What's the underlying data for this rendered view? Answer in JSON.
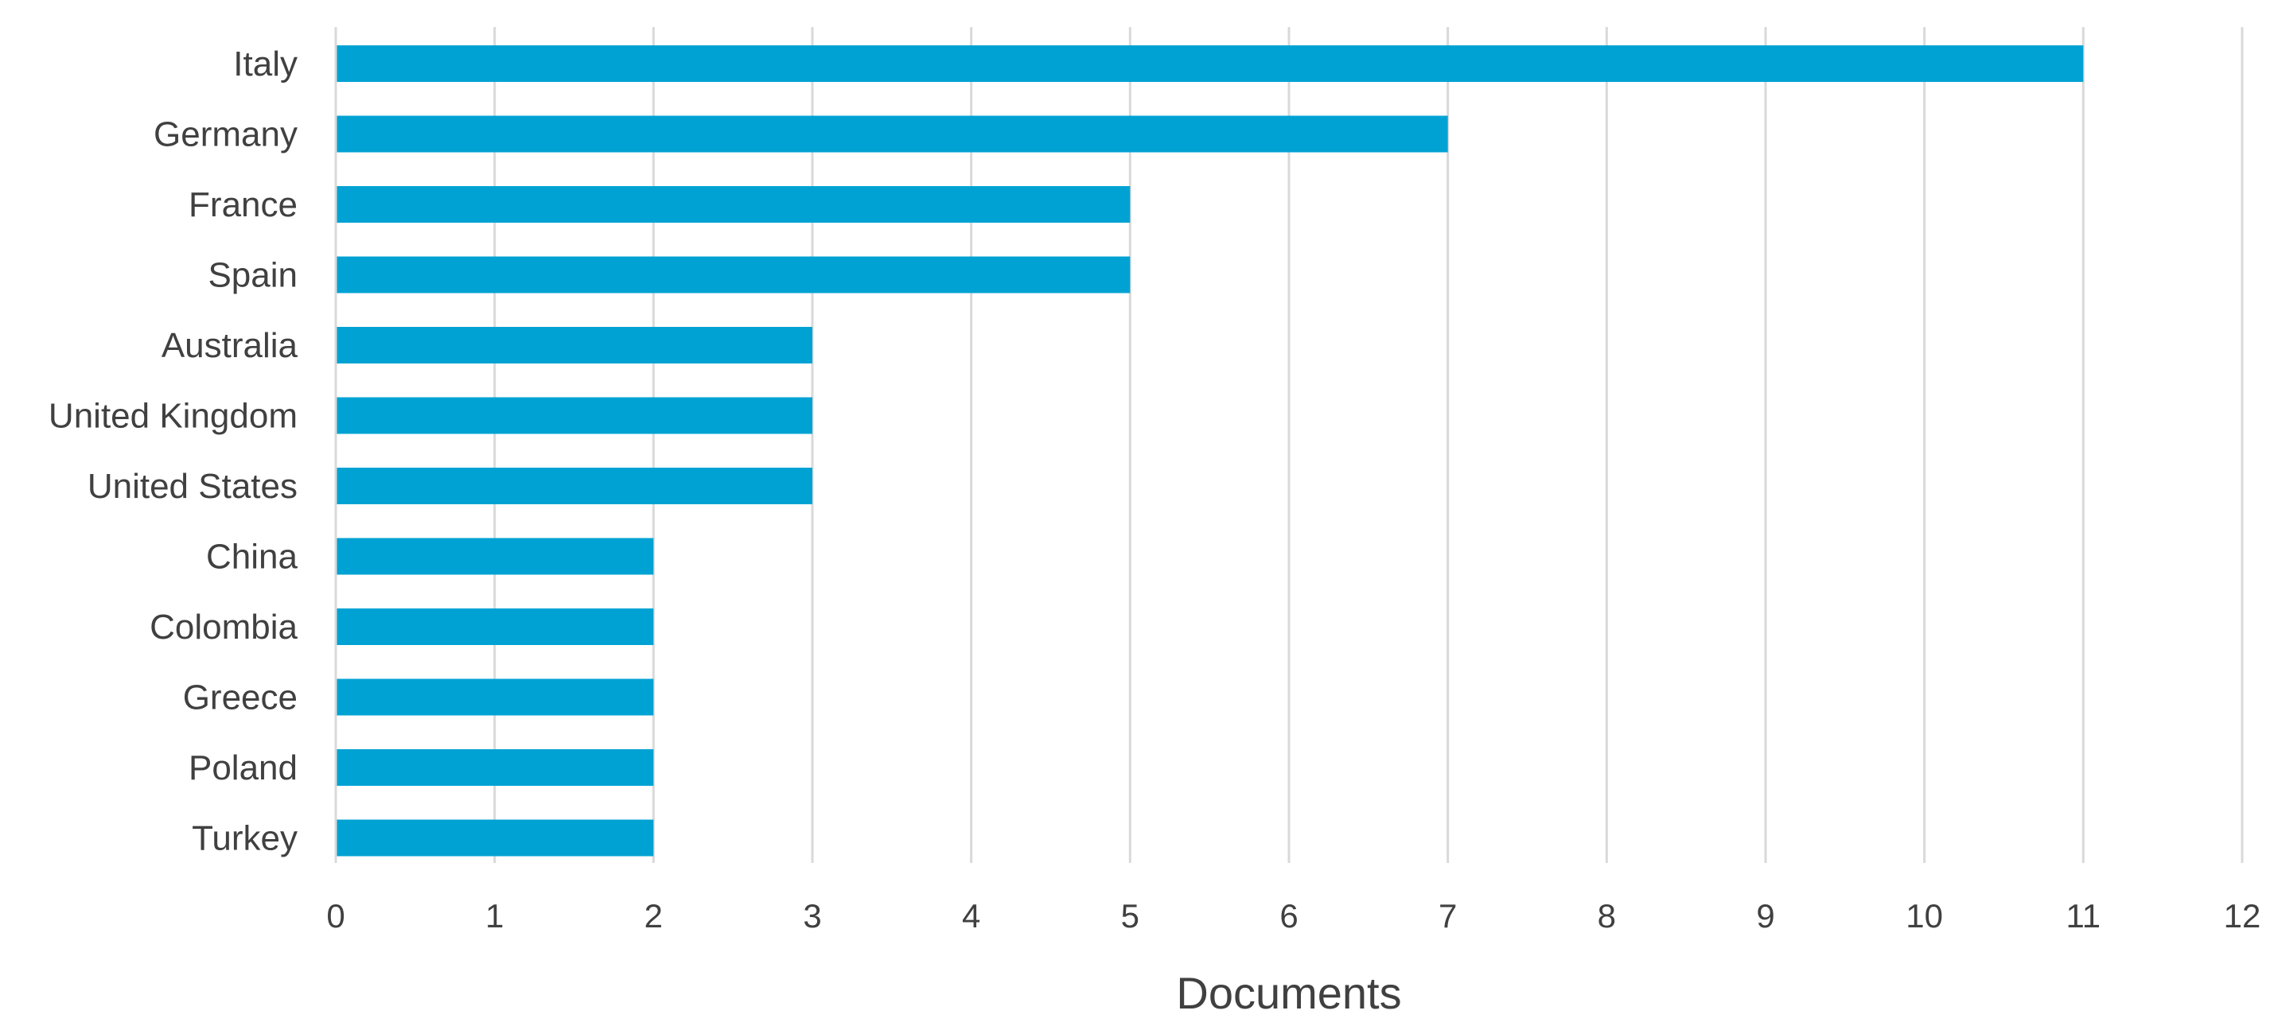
{
  "chart_data": {
    "type": "bar",
    "orientation": "horizontal",
    "categories": [
      "Italy",
      "Germany",
      "France",
      "Spain",
      "Australia",
      "United Kingdom",
      "United States",
      "China",
      "Colombia",
      "Greece",
      "Poland",
      "Turkey"
    ],
    "values": [
      11,
      7,
      5,
      5,
      3,
      3,
      3,
      2,
      2,
      2,
      2,
      2
    ],
    "title": "",
    "xlabel": "Documents",
    "ylabel": "",
    "xlim": [
      0,
      12
    ],
    "xticks": [
      "0",
      "1",
      "2",
      "3",
      "4",
      "5",
      "6",
      "7",
      "8",
      "9",
      "10",
      "11",
      "12"
    ],
    "grid": "vertical",
    "legend": "none",
    "bar_color": "#00a2d3"
  }
}
